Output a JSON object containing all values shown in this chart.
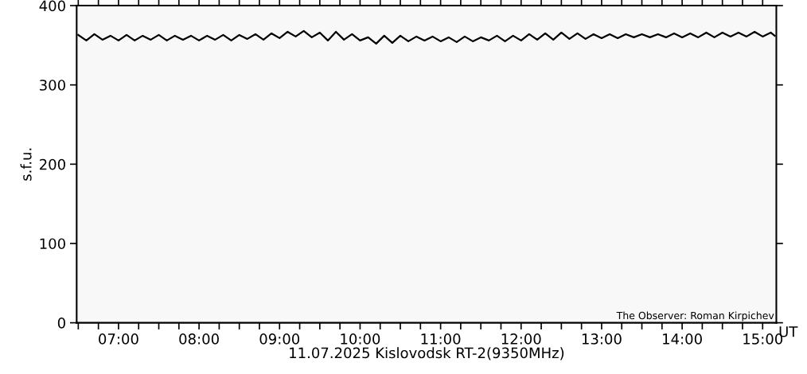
{
  "chart_data": {
    "type": "line",
    "xlabel": "11.07.2025 Kislovodsk RT-2(9350MHz)",
    "ylabel": "s.f.u.",
    "annotations": [
      "The Observer: Roman Kirpichev",
      "UT"
    ],
    "x": [
      6.5,
      6.6,
      6.7,
      6.8,
      6.9,
      7.0,
      7.1,
      7.2,
      7.3,
      7.4,
      7.5,
      7.6,
      7.7,
      7.8,
      7.9,
      8.0,
      8.1,
      8.2,
      8.3,
      8.4,
      8.5,
      8.6,
      8.7,
      8.8,
      8.9,
      9.0,
      9.1,
      9.2,
      9.3,
      9.4,
      9.5,
      9.6,
      9.7,
      9.8,
      9.9,
      10.0,
      10.1,
      10.2,
      10.3,
      10.4,
      10.5,
      10.6,
      10.7,
      10.8,
      10.9,
      11.0,
      11.1,
      11.2,
      11.3,
      11.4,
      11.5,
      11.6,
      11.7,
      11.8,
      11.9,
      12.0,
      12.1,
      12.2,
      12.3,
      12.4,
      12.5,
      12.6,
      12.7,
      12.8,
      12.9,
      13.0,
      13.1,
      13.2,
      13.3,
      13.4,
      13.5,
      13.6,
      13.7,
      13.8,
      13.9,
      14.0,
      14.1,
      14.2,
      14.3,
      14.4,
      14.5,
      14.6,
      14.7,
      14.8,
      14.9,
      15.0,
      15.1,
      15.15
    ],
    "series": [
      {
        "color": "#000000",
        "values": [
          363,
          356,
          364,
          357,
          362,
          356,
          363,
          356,
          362,
          357,
          363,
          356,
          362,
          357,
          362,
          356,
          362,
          357,
          363,
          356,
          363,
          358,
          364,
          357,
          365,
          359,
          367,
          361,
          368,
          360,
          366,
          356,
          367,
          357,
          364,
          356,
          360,
          352,
          362,
          353,
          362,
          355,
          361,
          356,
          361,
          355,
          360,
          354,
          361,
          355,
          360,
          356,
          362,
          355,
          362,
          356,
          364,
          357,
          365,
          357,
          366,
          358,
          365,
          358,
          364,
          359,
          364,
          359,
          364,
          360,
          364,
          360,
          364,
          360,
          365,
          360,
          365,
          360,
          366,
          360,
          366,
          361,
          366,
          361,
          367,
          361,
          366,
          362
        ]
      }
    ],
    "xlim": [
      6.48,
      15.17
    ],
    "ylim": [
      0,
      400
    ],
    "yticks": [
      0,
      100,
      200,
      300,
      400
    ],
    "xticks": [
      {
        "value": 6.5,
        "label": null
      },
      {
        "value": 6.75,
        "label": null
      },
      {
        "value": 7,
        "label": "07:00"
      },
      {
        "value": 7.25,
        "label": null
      },
      {
        "value": 7.5,
        "label": null
      },
      {
        "value": 7.75,
        "label": null
      },
      {
        "value": 8,
        "label": "08:00"
      },
      {
        "value": 8.25,
        "label": null
      },
      {
        "value": 8.5,
        "label": null
      },
      {
        "value": 8.75,
        "label": null
      },
      {
        "value": 9,
        "label": "09:00"
      },
      {
        "value": 9.25,
        "label": null
      },
      {
        "value": 9.5,
        "label": null
      },
      {
        "value": 9.75,
        "label": null
      },
      {
        "value": 10,
        "label": "10:00"
      },
      {
        "value": 10.25,
        "label": null
      },
      {
        "value": 10.5,
        "label": null
      },
      {
        "value": 10.75,
        "label": null
      },
      {
        "value": 11,
        "label": "11:00"
      },
      {
        "value": 11.25,
        "label": null
      },
      {
        "value": 11.5,
        "label": null
      },
      {
        "value": 11.75,
        "label": null
      },
      {
        "value": 12,
        "label": "12:00"
      },
      {
        "value": 12.25,
        "label": null
      },
      {
        "value": 12.5,
        "label": null
      },
      {
        "value": 12.75,
        "label": null
      },
      {
        "value": 13,
        "label": "13:00"
      },
      {
        "value": 13.25,
        "label": null
      },
      {
        "value": 13.5,
        "label": null
      },
      {
        "value": 13.75,
        "label": null
      },
      {
        "value": 14,
        "label": "14:00"
      },
      {
        "value": 14.25,
        "label": null
      },
      {
        "value": 14.5,
        "label": null
      },
      {
        "value": 14.75,
        "label": null
      },
      {
        "value": 15,
        "label": "15:00"
      }
    ],
    "grid": false,
    "legend": false,
    "marker": "none",
    "line_style": "solid"
  }
}
